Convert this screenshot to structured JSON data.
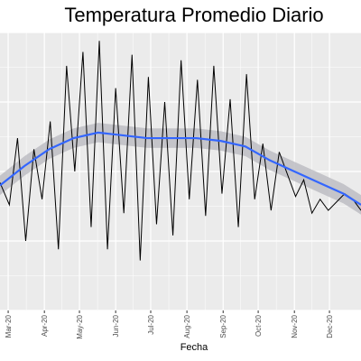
{
  "chart_data": {
    "type": "line",
    "title": "Temperatura Promedio Diario",
    "xlabel": "Fecha",
    "ylabel": "",
    "x_tick_labels": [
      "Mar-20",
      "Apr-20",
      "May-20",
      "Jun-20",
      "Jul-20",
      "Aug-20",
      "Sep-20",
      "Oct-20",
      "Nov-20",
      "Dec-20"
    ],
    "x_range": [
      "2020-02-23",
      "2020-12-28"
    ],
    "y_range": [
      0,
      1
    ],
    "y_ticks_shown": false,
    "grid": true,
    "legend": "none",
    "colors": {
      "panel_background": "#ebebeb",
      "grid_major": "#ffffff",
      "series_line": "#000000",
      "smooth_line": "#3366ff",
      "smooth_band": "#bdbdc3"
    },
    "series": [
      {
        "name": "",
        "style": "daily",
        "x": [
          "2020-02-23",
          "2020-03-02",
          "2020-03-09",
          "2020-03-16",
          "2020-03-23",
          "2020-03-30",
          "2020-04-06",
          "2020-04-13",
          "2020-04-20",
          "2020-04-27",
          "2020-05-04",
          "2020-05-11",
          "2020-05-18",
          "2020-05-25",
          "2020-06-01",
          "2020-06-08",
          "2020-06-15",
          "2020-06-22",
          "2020-06-29",
          "2020-07-06",
          "2020-07-13",
          "2020-07-20",
          "2020-07-27",
          "2020-08-03",
          "2020-08-10",
          "2020-08-17",
          "2020-08-24",
          "2020-08-31",
          "2020-09-07",
          "2020-09-14",
          "2020-09-21",
          "2020-09-28",
          "2020-10-05",
          "2020-10-12",
          "2020-10-19",
          "2020-10-26",
          "2020-11-02",
          "2020-11-09",
          "2020-11-16",
          "2020-11-23",
          "2020-11-30",
          "2020-12-07",
          "2020-12-14",
          "2020-12-21",
          "2020-12-28"
        ],
        "y": [
          0.46,
          0.38,
          0.62,
          0.25,
          0.58,
          0.4,
          0.68,
          0.22,
          0.88,
          0.5,
          0.93,
          0.3,
          0.97,
          0.22,
          0.8,
          0.35,
          0.92,
          0.18,
          0.84,
          0.31,
          0.75,
          0.27,
          0.9,
          0.4,
          0.83,
          0.34,
          0.88,
          0.42,
          0.76,
          0.3,
          0.85,
          0.4,
          0.6,
          0.36,
          0.57,
          0.49,
          0.41,
          0.47,
          0.35,
          0.4,
          0.36,
          0.39,
          0.42,
          0.4,
          0.36
        ]
      },
      {
        "name": "",
        "style": "smooth",
        "x": [
          "2020-02-23",
          "2020-03-15",
          "2020-04-05",
          "2020-04-26",
          "2020-05-17",
          "2020-06-07",
          "2020-06-28",
          "2020-07-19",
          "2020-08-09",
          "2020-08-30",
          "2020-09-20",
          "2020-10-11",
          "2020-11-01",
          "2020-11-22",
          "2020-12-13",
          "2020-12-28"
        ],
        "y": [
          0.45,
          0.52,
          0.58,
          0.62,
          0.64,
          0.63,
          0.62,
          0.62,
          0.62,
          0.61,
          0.59,
          0.54,
          0.5,
          0.46,
          0.42,
          0.38
        ]
      }
    ]
  }
}
